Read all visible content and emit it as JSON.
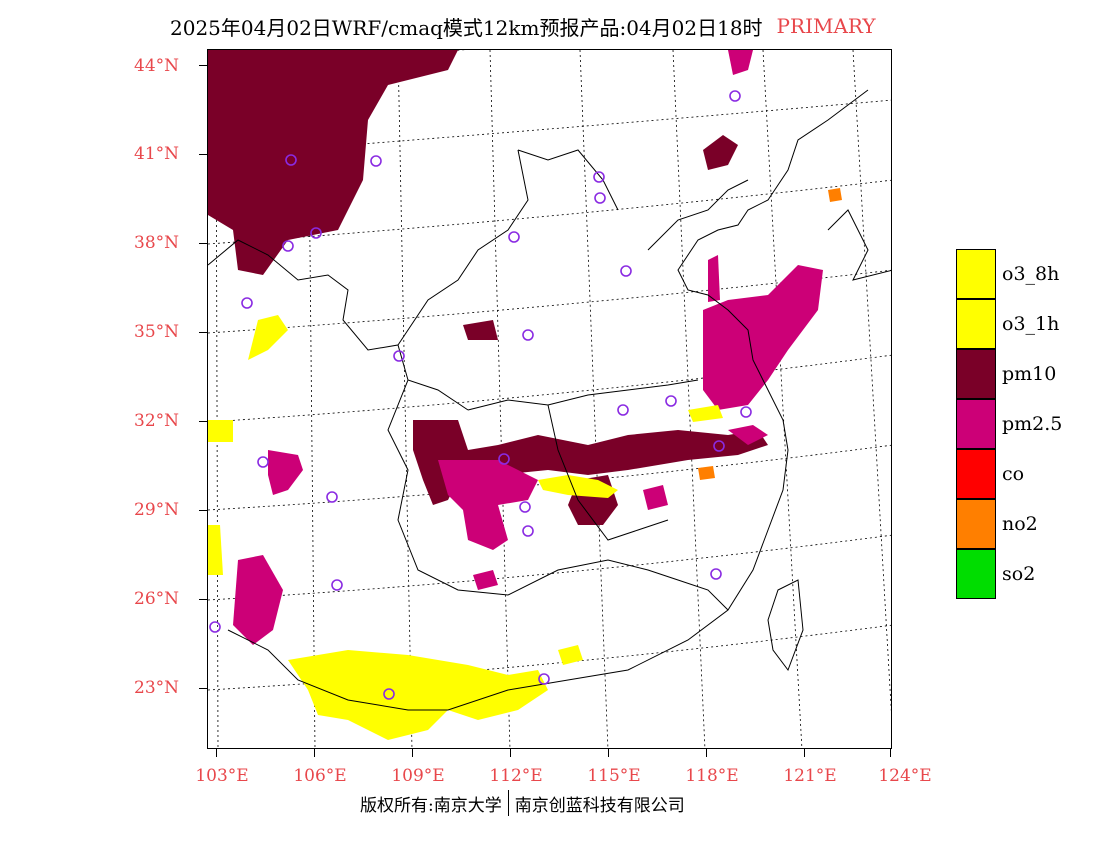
{
  "title": {
    "main": "2025年04月02日WRF/cmaq模式12km预报产品:04月02日18时",
    "tag": "PRIMARY"
  },
  "axes": {
    "latitude_labels": [
      "44°N",
      "41°N",
      "38°N",
      "35°N",
      "32°N",
      "29°N",
      "26°N",
      "23°N"
    ],
    "latitude_values": [
      44,
      41,
      38,
      35,
      32,
      29,
      26,
      23
    ],
    "longitude_labels": [
      "103°E",
      "106°E",
      "109°E",
      "112°E",
      "115°E",
      "118°E",
      "121°E",
      "124°E"
    ],
    "longitude_values": [
      103,
      106,
      109,
      112,
      115,
      118,
      121,
      124
    ]
  },
  "legend": [
    {
      "label": "o3_8h",
      "color": "#ffff00"
    },
    {
      "label": "o3_1h",
      "color": "#ffff00"
    },
    {
      "label": "pm10",
      "color": "#7a0028"
    },
    {
      "label": "pm2.5",
      "color": "#cc0077"
    },
    {
      "label": "co",
      "color": "#ff0000"
    },
    {
      "label": "no2",
      "color": "#ff7f00"
    },
    {
      "label": "so2",
      "color": "#00dd00"
    }
  ],
  "footer": {
    "left": "版权所有:南京大学",
    "right": "南京创蓝科技有限公司"
  },
  "colors": {
    "label_red": "#e8474b",
    "station_marker": "#8a2be2"
  }
}
